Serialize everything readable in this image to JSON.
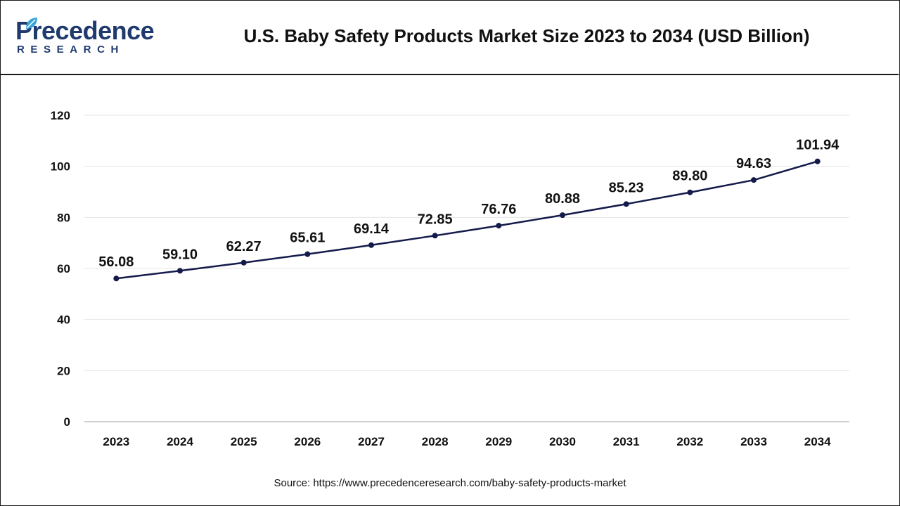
{
  "header": {
    "logo_main": "Precedence",
    "logo_sub": "RESEARCH",
    "title": "U.S. Baby Safety Products Market Size 2023 to 2034 (USD Billion)"
  },
  "source": "Source: https://www.precedenceresearch.com/baby-safety-products-market",
  "colors": {
    "line": "#141a4a",
    "grid": "#e6e6e6",
    "brand": "#1f3a6e",
    "accent": "#3aa6d8"
  },
  "chart_data": {
    "type": "line",
    "categories": [
      "2023",
      "2024",
      "2025",
      "2026",
      "2027",
      "2028",
      "2029",
      "2030",
      "2031",
      "2032",
      "2033",
      "2034"
    ],
    "values": [
      56.08,
      59.1,
      62.27,
      65.61,
      69.14,
      72.85,
      76.76,
      80.88,
      85.23,
      89.8,
      94.63,
      101.94
    ],
    "value_labels": [
      "56.08",
      "59.10",
      "62.27",
      "65.61",
      "69.14",
      "72.85",
      "76.76",
      "80.88",
      "85.23",
      "89.80",
      "94.63",
      "101.94"
    ],
    "ylim": [
      0,
      120
    ],
    "yticks": [
      "0",
      "20",
      "40",
      "60",
      "80",
      "100",
      "120"
    ],
    "grid": true,
    "xlabel": "",
    "ylabel": ""
  }
}
